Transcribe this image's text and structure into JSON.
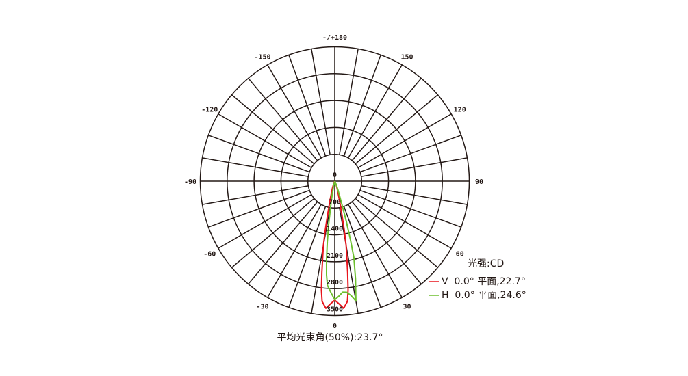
{
  "chart_data": {
    "type": "polar-line",
    "unit_label": "光强:CD",
    "footer": "平均光束角(50%):23.7°",
    "angle_ticks": [
      {
        "angle": 0,
        "label": "0"
      },
      {
        "angle": 30,
        "label": "30"
      },
      {
        "angle": 60,
        "label": "60"
      },
      {
        "angle": 90,
        "label": "90"
      },
      {
        "angle": 120,
        "label": "120"
      },
      {
        "angle": 150,
        "label": "150"
      },
      {
        "angle": 180,
        "label": "-/+180"
      },
      {
        "angle": -150,
        "label": "-150"
      },
      {
        "angle": -120,
        "label": "-120"
      },
      {
        "angle": -90,
        "label": "-90"
      },
      {
        "angle": -60,
        "label": "-60"
      },
      {
        "angle": -30,
        "label": "-30"
      }
    ],
    "radial_ticks": [
      {
        "value": 0,
        "label": "0"
      },
      {
        "value": 700,
        "label": "700"
      },
      {
        "value": 1400,
        "label": "1400"
      },
      {
        "value": 2100,
        "label": "2100"
      },
      {
        "value": 2800,
        "label": "2800"
      },
      {
        "value": 3500,
        "label": "3500"
      }
    ],
    "rlim": [
      0,
      3500
    ],
    "spoke_step_deg": 10,
    "series": [
      {
        "name": "V  0.0° 平面,22.7°",
        "color": "#e8141c",
        "angles": [
          -30,
          -25,
          -18,
          -14,
          -12,
          -11,
          -10,
          -9,
          -8,
          -7,
          -6,
          -4,
          -2,
          0,
          2,
          4,
          6,
          7,
          8,
          9,
          10,
          11,
          12,
          14,
          18,
          25,
          30
        ],
        "values": [
          0,
          50,
          200,
          500,
          900,
          1300,
          1700,
          2000,
          2400,
          2850,
          3150,
          3320,
          3200,
          3100,
          3200,
          3320,
          3150,
          2850,
          2400,
          2000,
          1700,
          1300,
          900,
          500,
          200,
          50,
          0
        ]
      },
      {
        "name": "H  0.0° 平面,24.6°",
        "color": "#6cbf2e",
        "angles": [
          -25,
          -14,
          -10,
          -8,
          -7,
          -6,
          -5,
          -4,
          -2,
          0,
          2,
          4,
          6,
          8,
          10,
          12,
          14,
          15,
          16,
          17,
          20,
          25,
          30
        ],
        "values": [
          0,
          150,
          500,
          1150,
          1600,
          2050,
          2450,
          2720,
          2900,
          3090,
          3000,
          2900,
          2910,
          3000,
          3170,
          2600,
          2060,
          1570,
          1100,
          650,
          250,
          50,
          0
        ]
      }
    ]
  }
}
